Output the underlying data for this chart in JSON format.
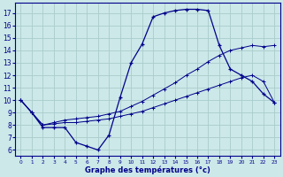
{
  "xlabel": "Graphe des températures (°c)",
  "bg_color": "#cce8e8",
  "line_color": "#00008b",
  "grid_color": "#aacccc",
  "xlim": [
    -0.5,
    23.5
  ],
  "ylim": [
    5.5,
    17.8
  ],
  "yticks": [
    6,
    7,
    8,
    9,
    10,
    11,
    12,
    13,
    14,
    15,
    16,
    17
  ],
  "xticks": [
    0,
    1,
    2,
    3,
    4,
    5,
    6,
    7,
    8,
    9,
    10,
    11,
    12,
    13,
    14,
    15,
    16,
    17,
    18,
    19,
    20,
    21,
    22,
    23
  ],
  "curve1_x": [
    0,
    1,
    2,
    3,
    4,
    5,
    6,
    7,
    8,
    9,
    10,
    11,
    12,
    13,
    14,
    15,
    16,
    17,
    18,
    19,
    20,
    21,
    22,
    23
  ],
  "curve1_y": [
    10.0,
    9.0,
    7.8,
    7.8,
    7.8,
    6.6,
    6.3,
    6.0,
    7.2,
    10.2,
    13.0,
    14.5,
    16.7,
    17.0,
    17.2,
    17.3,
    17.3,
    17.2,
    14.4,
    12.5,
    12.0,
    11.5,
    10.5,
    9.8
  ],
  "curve2_x": [
    0,
    1,
    2,
    3,
    4,
    5,
    6,
    7,
    8,
    9,
    10,
    11,
    12,
    13,
    14,
    15,
    16,
    17,
    18,
    19,
    20,
    21,
    22,
    23
  ],
  "curve2_y": [
    10.0,
    9.0,
    8.0,
    8.1,
    8.2,
    8.2,
    8.3,
    8.4,
    8.5,
    8.7,
    8.9,
    9.1,
    9.4,
    9.7,
    10.0,
    10.3,
    10.6,
    10.9,
    11.2,
    11.5,
    11.8,
    12.0,
    11.5,
    9.8
  ],
  "curve3_x": [
    0,
    1,
    2,
    3,
    4,
    5,
    6,
    7,
    8,
    9,
    10,
    11,
    12,
    13,
    14,
    15,
    16,
    17,
    18,
    19,
    20,
    21,
    22,
    23
  ],
  "curve3_y": [
    10.0,
    9.0,
    8.0,
    8.2,
    8.4,
    8.5,
    8.6,
    8.7,
    8.9,
    9.1,
    9.5,
    9.9,
    10.4,
    10.9,
    11.4,
    12.0,
    12.5,
    13.1,
    13.6,
    14.0,
    14.2,
    14.4,
    14.3,
    14.4
  ]
}
